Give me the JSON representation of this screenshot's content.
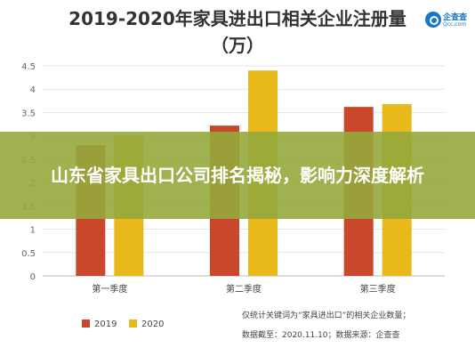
{
  "chart_data": {
    "type": "bar",
    "title": "2019-2020年家具进出口相关企业注册量",
    "subtitle": "（万）",
    "categories": [
      "第一季度",
      "第二季度",
      "第三季度"
    ],
    "series": [
      {
        "name": "2019",
        "values": [
          2.8,
          3.22,
          3.62
        ],
        "color": "#c9472b"
      },
      {
        "name": "2020",
        "values": [
          3.0,
          4.4,
          3.68
        ],
        "color": "#e9b81a"
      }
    ],
    "yticks": [
      "0",
      "0.5",
      "1",
      "1.5",
      "2",
      "2.5",
      "3",
      "3.5",
      "4",
      "4.5"
    ],
    "ylim": [
      0,
      4.5
    ],
    "grid": true,
    "legend": "bottom-left",
    "footnote": [
      "仅统计关键词为“家具进出口”的相关企业数量；",
      "数据截至：2020.11.10；数据来源：企查查"
    ]
  },
  "logo": {
    "name": "企查查",
    "sub": "Qcc.com"
  },
  "overlay": {
    "headline": "山东省家具出口公司排名揭秘，影响力深度解析"
  }
}
